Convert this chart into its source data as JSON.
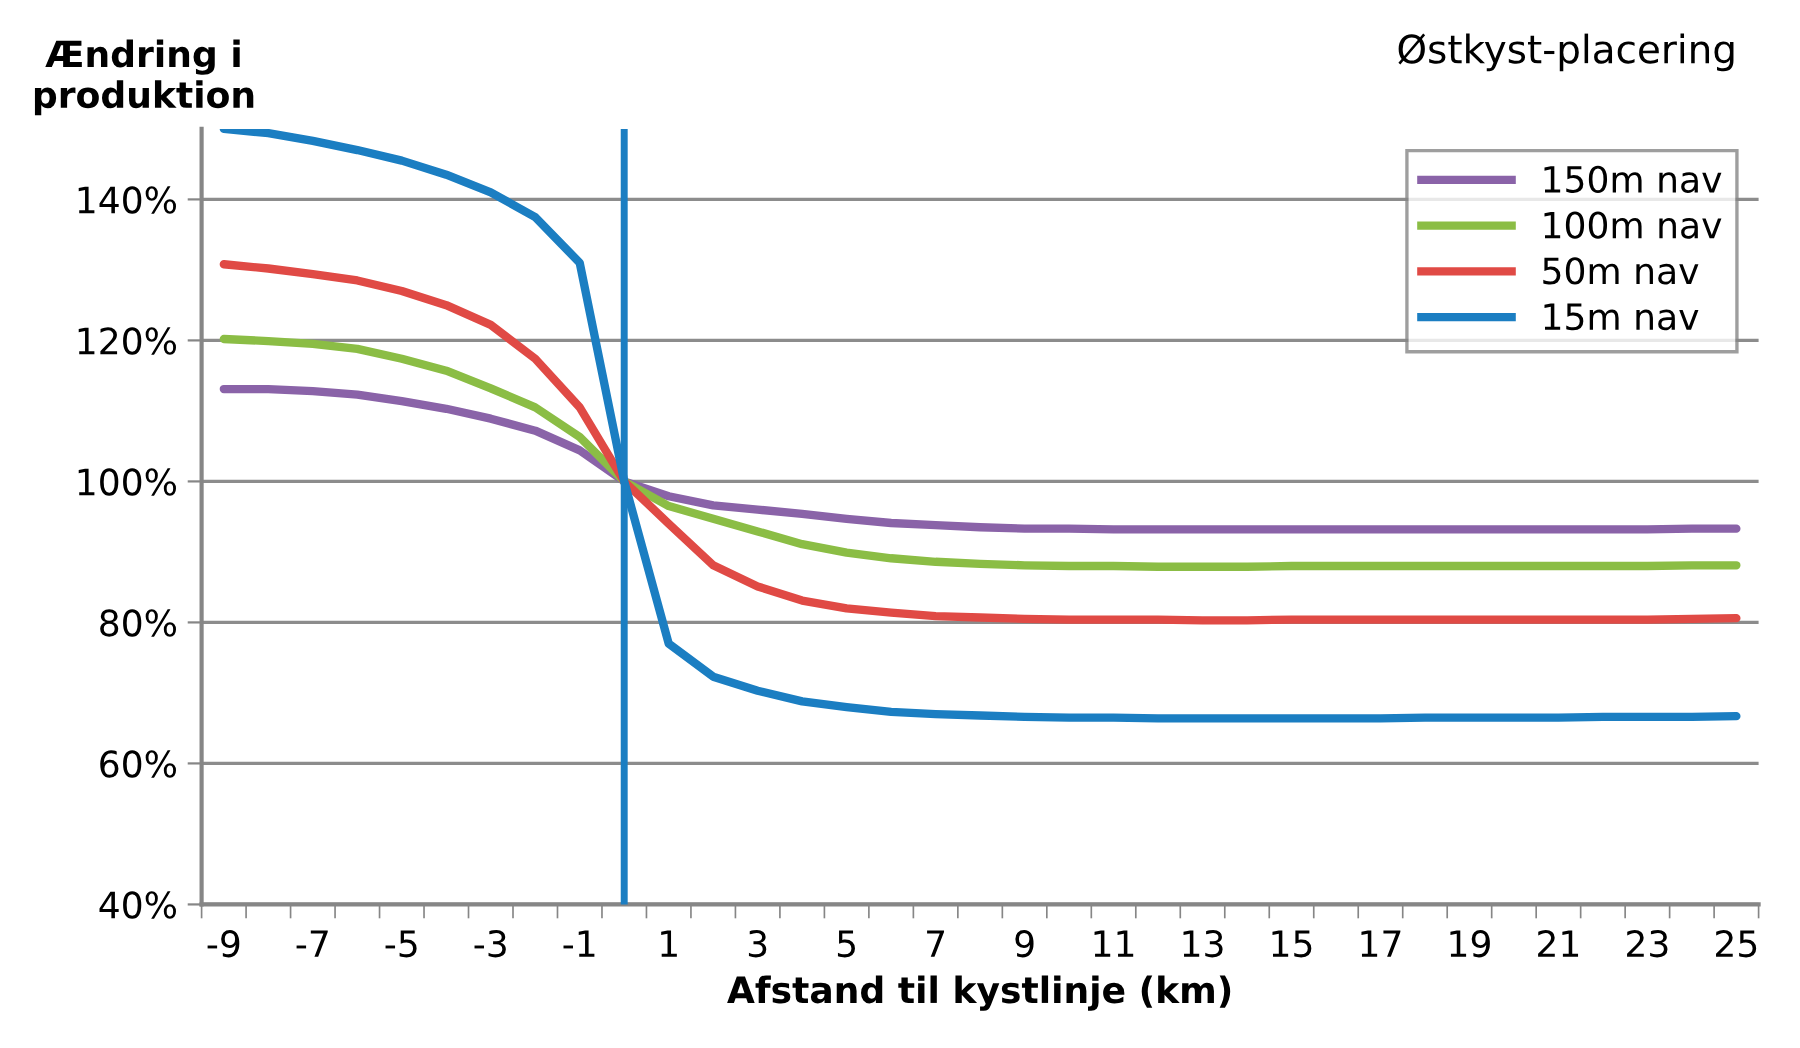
{
  "chart_data": {
    "type": "line",
    "title": "Østkyst-placering",
    "ylabel": "Ændring i produktion",
    "xlabel": "Afstand til kystlinje (km)",
    "x": [
      -9,
      -8,
      -7,
      -6,
      -5,
      -4,
      -3,
      -2,
      -1,
      0,
      1,
      2,
      3,
      4,
      5,
      6,
      7,
      8,
      9,
      10,
      11,
      12,
      13,
      14,
      15,
      16,
      17,
      18,
      19,
      20,
      21,
      22,
      23,
      24,
      25
    ],
    "series": [
      {
        "name": "150m nav",
        "color": "#8a63a8",
        "values": [
          113.1,
          113.1,
          112.8,
          112.3,
          111.4,
          110.3,
          108.9,
          107.2,
          104.4,
          100,
          97.9,
          96.6,
          96,
          95.4,
          94.7,
          94.1,
          93.8,
          93.5,
          93.3,
          93.3,
          93.2,
          93.2,
          93.2,
          93.2,
          93.2,
          93.2,
          93.2,
          93.2,
          93.2,
          93.2,
          93.2,
          93.2,
          93.2,
          93.3,
          93.3
        ]
      },
      {
        "name": "100m nav",
        "color": "#8bbd45",
        "values": [
          120.2,
          119.9,
          119.5,
          118.8,
          117.4,
          115.7,
          113.2,
          110.5,
          106.3,
          100,
          96.5,
          94.7,
          92.9,
          91.1,
          89.9,
          89.1,
          88.6,
          88.3,
          88.1,
          88,
          88,
          87.9,
          87.9,
          87.9,
          88,
          88,
          88,
          88,
          88,
          88,
          88,
          88,
          88,
          88.1,
          88.1
        ]
      },
      {
        "name": "50m nav",
        "color": "#e04a45",
        "values": [
          130.8,
          130.2,
          129.4,
          128.5,
          127,
          125,
          122.2,
          117.4,
          110.5,
          100,
          94,
          88.1,
          85.1,
          83.1,
          82,
          81.4,
          80.9,
          80.7,
          80.5,
          80.4,
          80.4,
          80.4,
          80.3,
          80.3,
          80.4,
          80.4,
          80.4,
          80.4,
          80.4,
          80.4,
          80.4,
          80.4,
          80.4,
          80.5,
          80.6
        ]
      },
      {
        "name": "15m nav",
        "color": "#1b7ec2",
        "values": [
          150,
          149.4,
          148.3,
          147,
          145.5,
          143.5,
          141,
          137.5,
          131,
          100,
          77,
          72.3,
          70.3,
          68.8,
          68,
          67.3,
          67,
          66.8,
          66.6,
          66.5,
          66.5,
          66.4,
          66.4,
          66.4,
          66.4,
          66.4,
          66.4,
          66.5,
          66.5,
          66.5,
          66.5,
          66.6,
          66.6,
          66.6,
          66.7
        ]
      }
    ],
    "xlim": [
      -9.5,
      25.5
    ],
    "xticks": [
      -9,
      -7,
      -5,
      -3,
      -1,
      1,
      3,
      5,
      7,
      9,
      11,
      13,
      15,
      17,
      19,
      21,
      23,
      25,
      {
        "value": -9.5,
        "label": null
      },
      {
        "value": -8.5,
        "label": null
      },
      {
        "value": -7.5,
        "label": null
      },
      {
        "value": -6.5,
        "label": null
      },
      {
        "value": -5.5,
        "label": null
      },
      {
        "value": -4.5,
        "label": null
      },
      {
        "value": -3.5,
        "label": null
      },
      {
        "value": -2.5,
        "label": null
      },
      {
        "value": -1.5,
        "label": null
      },
      {
        "value": -0.5,
        "label": null
      },
      {
        "value": 0.5,
        "label": null
      },
      {
        "value": 1.5,
        "label": null
      },
      {
        "value": 2.5,
        "label": null
      },
      {
        "value": 3.5,
        "label": null
      },
      {
        "value": 4.5,
        "label": null
      },
      {
        "value": 5.5,
        "label": null
      },
      {
        "value": 6.5,
        "label": null
      },
      {
        "value": 7.5,
        "label": null
      },
      {
        "value": 8.5,
        "label": null
      },
      {
        "value": 9.5,
        "label": null
      },
      {
        "value": 10.5,
        "label": null
      },
      {
        "value": 11.5,
        "label": null
      },
      {
        "value": 12.5,
        "label": null
      },
      {
        "value": 13.5,
        "label": null
      },
      {
        "value": 14.5,
        "label": null
      },
      {
        "value": 15.5,
        "label": null
      },
      {
        "value": 16.5,
        "label": null
      },
      {
        "value": 17.5,
        "label": null
      },
      {
        "value": 18.5,
        "label": null
      },
      {
        "value": 19.5,
        "label": null
      },
      {
        "value": 20.5,
        "label": null
      },
      {
        "value": 21.5,
        "label": null
      },
      {
        "value": 22.5,
        "label": null
      },
      {
        "value": 23.5,
        "label": null
      },
      {
        "value": 24.5,
        "label": null
      },
      {
        "value": 25.5,
        "label": null
      }
    ],
    "ylim": [
      40,
      150
    ],
    "yticks": [
      {
        "value": 40,
        "label": "40%"
      },
      {
        "value": 60,
        "label": "60%"
      },
      {
        "value": 80,
        "label": "80%"
      },
      {
        "value": 100,
        "label": "100%"
      },
      {
        "value": 120,
        "label": "120%"
      },
      {
        "value": 140,
        "label": "140%"
      }
    ],
    "ref_lines": [
      {
        "axis": "x",
        "value": 0,
        "label": null,
        "color": "#1b7ec2"
      }
    ],
    "grid": "y",
    "legend": "top right",
    "marker": "none",
    "line_style": "solid"
  }
}
